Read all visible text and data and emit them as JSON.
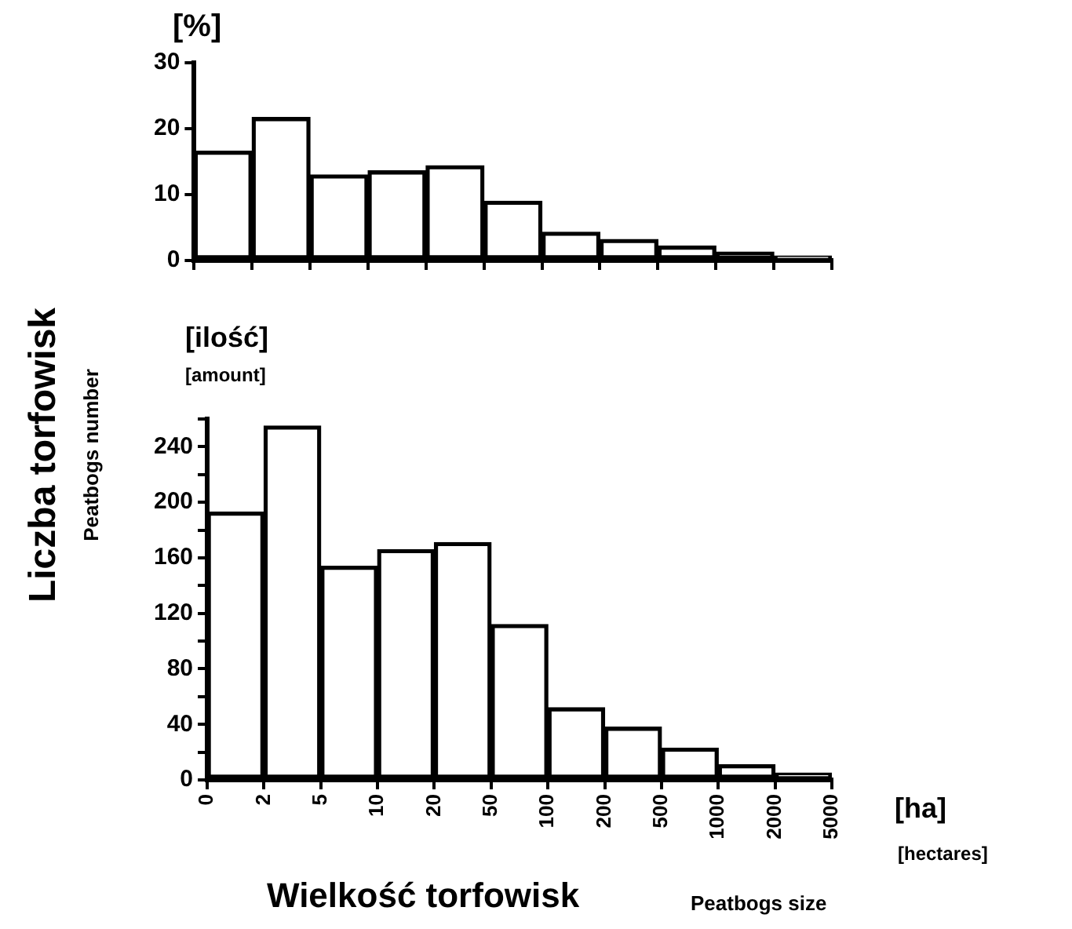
{
  "chart_data": [
    {
      "type": "bar",
      "ylabel": "[%]",
      "categories": [
        null,
        null,
        null,
        null,
        null,
        null,
        null,
        null,
        null,
        null,
        null
      ],
      "values": [
        16.6,
        21.7,
        13.0,
        13.6,
        14.4,
        9.0,
        4.3,
        3.2,
        2.2,
        1.3,
        0.7
      ],
      "color": "#000000",
      "ylim": [
        0,
        30
      ],
      "yticks": [
        0,
        10,
        20,
        30
      ],
      "tick_labels": "y",
      "grid": false
    },
    {
      "type": "bar",
      "ylabel": "Liczba torfowisk",
      "xlabel": "Wielkość torfowisk",
      "annotations": [
        "Peatbogs number",
        "[ilość]",
        "[amount]",
        "[ha]",
        "[hectares]",
        "Peatbogs size",
        "0",
        "2",
        "5",
        "10",
        "20",
        "50",
        "100",
        "200",
        "500",
        "1000",
        "2000",
        "5000"
      ],
      "categories": [
        null,
        null,
        null,
        null,
        null,
        null,
        null,
        null,
        null,
        null,
        null
      ],
      "values": [
        193,
        255,
        154,
        166,
        171,
        112,
        52,
        38,
        23,
        11,
        5
      ],
      "color": "#000000",
      "ylim": [
        0,
        260
      ],
      "yticks": [
        0,
        {
          "value": 20,
          "label": null
        },
        40,
        {
          "value": 60,
          "label": null
        },
        80,
        {
          "value": 100,
          "label": null
        },
        120,
        {
          "value": 140,
          "label": null
        },
        160,
        {
          "value": 180,
          "label": null
        },
        200,
        {
          "value": 220,
          "label": null
        },
        240,
        {
          "value": 260,
          "label": null
        }
      ],
      "tick_labels": "y",
      "grid": false
    }
  ]
}
